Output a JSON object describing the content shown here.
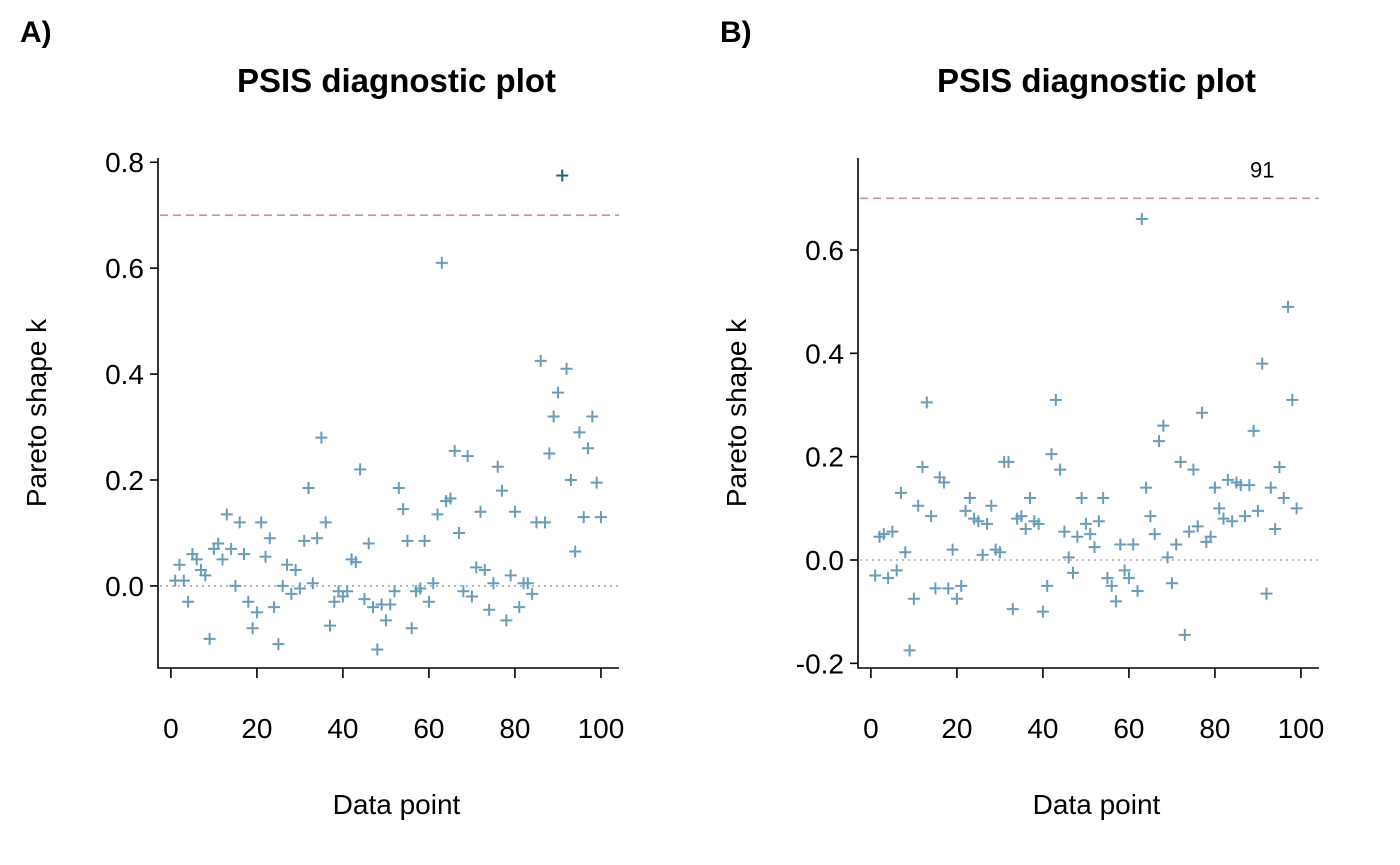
{
  "chart_data": [
    {
      "type": "scatter",
      "label": "A)",
      "title": "PSIS diagnostic plot",
      "xlabel": "Data point",
      "ylabel": "Pareto shape k",
      "xlim": [
        -3,
        104.2
      ],
      "ylim": [
        -0.155,
        0.808
      ],
      "xticks": [
        0,
        20,
        40,
        60,
        80,
        100
      ],
      "yticks": [
        {
          "value": 0,
          "label": "0.0"
        },
        0.2,
        0.4,
        0.6,
        0.8
      ],
      "hlines": [
        {
          "y": 0.7,
          "color": "#c99597",
          "style": "dashed"
        },
        {
          "y": 0,
          "color": "#a9a9a9",
          "style": "dotted"
        }
      ],
      "series": [
        {
          "color": "#6a9bb8",
          "x": [
            1,
            2,
            3,
            4,
            5,
            6,
            7,
            8,
            9,
            10,
            11,
            12,
            13,
            14,
            15,
            16,
            17,
            18,
            19,
            20,
            21,
            22,
            23,
            24,
            25,
            26,
            27,
            28,
            29,
            30,
            31,
            32,
            33,
            34,
            35,
            36,
            37,
            38,
            39,
            40,
            41,
            42,
            43,
            44,
            45,
            46,
            47,
            48,
            49,
            50,
            51,
            52,
            53,
            54,
            55,
            56,
            57,
            58,
            59,
            60,
            61,
            62,
            63,
            64,
            65,
            66,
            67,
            68,
            69,
            70,
            71,
            72,
            73,
            74,
            75,
            76,
            77,
            78,
            79,
            80,
            81,
            82,
            83,
            84,
            85,
            86,
            87,
            88,
            89,
            90,
            92,
            93,
            94,
            95,
            96,
            97,
            98,
            99,
            100
          ],
          "values": [
            0.01,
            0.04,
            0.01,
            -0.03,
            0.06,
            0.05,
            0.03,
            0.02,
            -0.1,
            0.07,
            0.08,
            0.05,
            0.135,
            0.07,
            0,
            0.12,
            0.06,
            -0.03,
            -0.08,
            -0.05,
            0.12,
            0.055,
            0.09,
            -0.04,
            -0.11,
            0,
            0.04,
            -0.015,
            0.03,
            -0.005,
            0.085,
            0.185,
            0.005,
            0.09,
            0.28,
            0.12,
            -0.075,
            -0.03,
            -0.01,
            -0.02,
            -0.01,
            0.05,
            0.045,
            0.22,
            -0.025,
            0.08,
            -0.04,
            -0.12,
            -0.035,
            -0.065,
            -0.035,
            -0.01,
            0.185,
            0.145,
            0.085,
            -0.08,
            -0.01,
            -0.005,
            0.085,
            -0.03,
            0.005,
            0.135,
            0.61,
            0.16,
            0.165,
            0.255,
            0.1,
            -0.01,
            0.245,
            -0.02,
            0.035,
            0.14,
            0.03,
            -0.045,
            0.005,
            0.225,
            0.18,
            -0.065,
            0.02,
            0.14,
            -0.04,
            0.005,
            0.005,
            -0.015,
            0.12,
            0.425,
            0.12,
            0.25,
            0.32,
            0.365,
            0.41,
            0.2,
            0.065,
            0.29,
            0.13,
            0.26,
            0.32,
            0.195,
            0.13
          ]
        },
        {
          "color": "#1f5f8b",
          "x": [
            91
          ],
          "values": [
            0.775
          ]
        }
      ]
    },
    {
      "type": "scatter",
      "label": "B)",
      "title": "PSIS diagnostic plot",
      "xlabel": "Data point",
      "ylabel": "Pareto shape k",
      "xlim": [
        -3,
        104.2
      ],
      "ylim": [
        -0.209,
        0.778
      ],
      "xticks": [
        0,
        20,
        40,
        60,
        80,
        100
      ],
      "yticks": [
        -0.2,
        {
          "value": 0,
          "label": "0.0"
        },
        0.2,
        0.4,
        0.6
      ],
      "hlines": [
        {
          "y": 0.7,
          "color": "#c99597",
          "style": "dashed"
        },
        {
          "y": 0,
          "color": "#a9a9a9",
          "style": "dotted"
        }
      ],
      "annotations": [
        {
          "text": "91",
          "x": 91,
          "y": 0.74,
          "color": "#1f5f8b"
        }
      ],
      "series": [
        {
          "color": "#6a9bb8",
          "x": [
            1,
            2,
            3,
            4,
            5,
            6,
            7,
            8,
            9,
            10,
            11,
            12,
            13,
            14,
            15,
            16,
            17,
            18,
            19,
            20,
            21,
            22,
            23,
            24,
            25,
            26,
            27,
            28,
            29,
            30,
            31,
            32,
            33,
            34,
            35,
            36,
            37,
            38,
            39,
            40,
            41,
            42,
            43,
            44,
            45,
            46,
            47,
            48,
            49,
            50,
            51,
            52,
            53,
            54,
            55,
            56,
            57,
            58,
            59,
            60,
            61,
            62,
            63,
            64,
            65,
            66,
            67,
            68,
            69,
            70,
            71,
            72,
            73,
            74,
            75,
            76,
            77,
            78,
            79,
            80,
            81,
            82,
            83,
            84,
            85,
            86,
            87,
            88,
            89,
            90,
            91,
            92,
            93,
            94,
            95,
            96,
            97,
            98,
            99
          ],
          "values": [
            -0.03,
            0.045,
            0.05,
            -0.035,
            0.055,
            -0.02,
            0.13,
            0.015,
            -0.175,
            -0.075,
            0.105,
            0.18,
            0.305,
            0.085,
            -0.055,
            0.16,
            0.15,
            -0.055,
            0.02,
            -0.075,
            -0.05,
            0.095,
            0.12,
            0.08,
            0.075,
            0.01,
            0.07,
            0.105,
            0.02,
            0.015,
            0.19,
            0.19,
            -0.095,
            0.08,
            0.085,
            0.06,
            0.12,
            0.075,
            0.07,
            -0.1,
            -0.05,
            0.205,
            0.31,
            0.175,
            0.055,
            0.005,
            -0.025,
            0.045,
            0.12,
            0.07,
            0.05,
            0.025,
            0.075,
            0.12,
            -0.035,
            -0.05,
            -0.08,
            0.03,
            -0.02,
            -0.035,
            0.03,
            -0.06,
            0.66,
            0.14,
            0.085,
            0.05,
            0.23,
            0.26,
            0.005,
            -0.045,
            0.03,
            0.19,
            -0.145,
            0.055,
            0.175,
            0.065,
            0.285,
            0.035,
            0.045,
            0.14,
            0.1,
            0.08,
            0.155,
            0.075,
            0.15,
            0.145,
            0.085,
            0.145,
            0.25,
            0.095,
            0.38,
            -0.065,
            0.14,
            0.06,
            0.18,
            0.12,
            0.49,
            0.31,
            0.1
          ]
        }
      ]
    }
  ]
}
